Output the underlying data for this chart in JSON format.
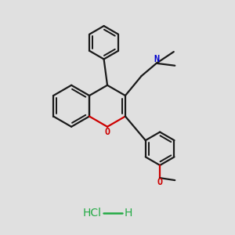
{
  "bg_color": "#e0e0e0",
  "bond_color": "#1a1a1a",
  "oxygen_color": "#cc0000",
  "nitrogen_color": "#0000cc",
  "hcl_color": "#22aa44",
  "lw": 1.6,
  "figsize": [
    3.0,
    3.0
  ],
  "dpi": 100,
  "xlim": [
    0,
    10
  ],
  "ylim": [
    0,
    10
  ]
}
